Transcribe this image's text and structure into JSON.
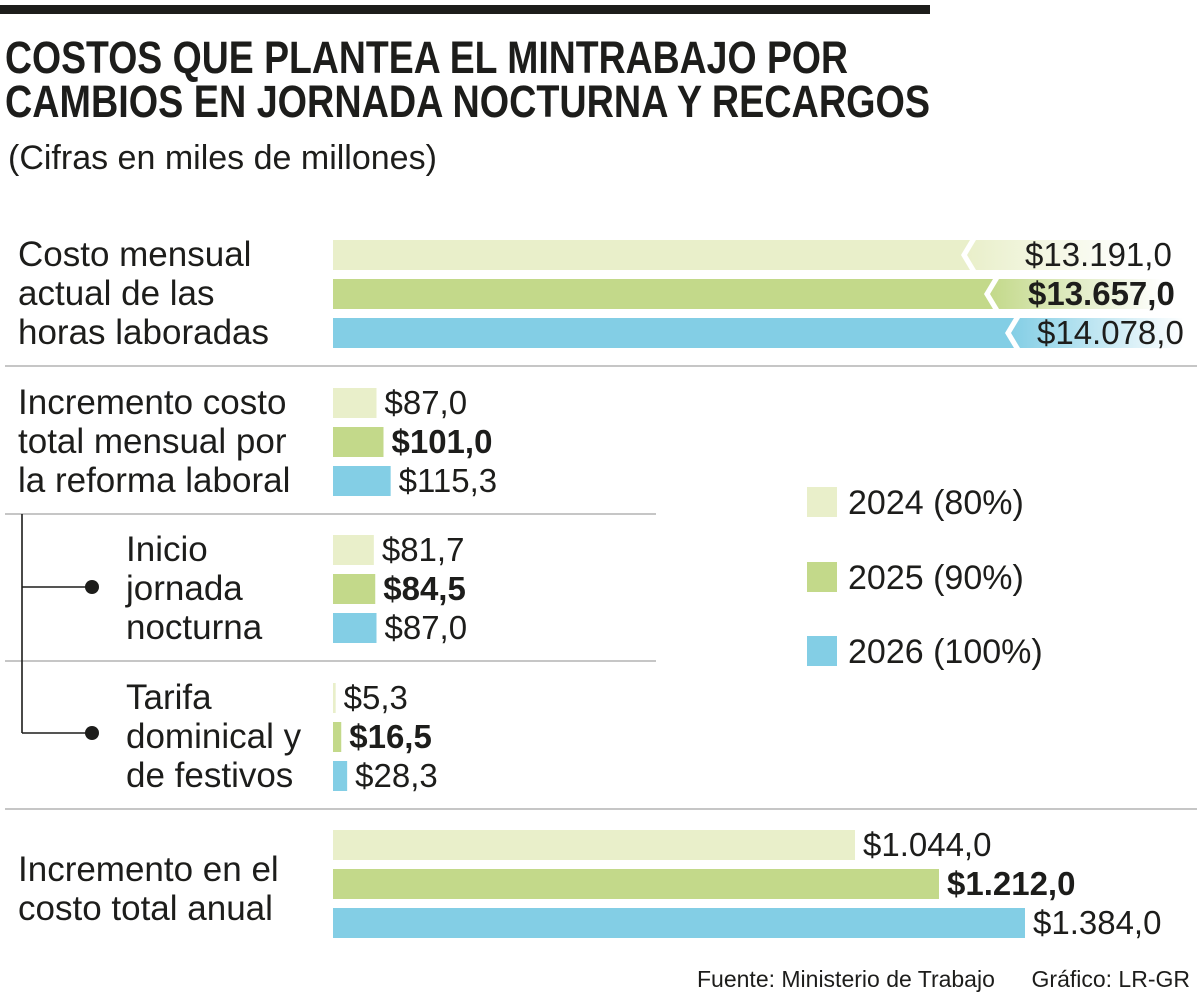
{
  "chart_data": {
    "type": "bar",
    "title_lines": [
      "COSTOS QUE PLANTEA EL MINTRABAJO POR",
      "CAMBIOS EN JORNADA NOCTURNA Y RECARGOS"
    ],
    "subtitle": "(Cifras en miles de millones)",
    "grid": false,
    "legend_position": "right",
    "series": [
      {
        "name": "2024 (80%)",
        "color": "#e9efca"
      },
      {
        "name": "2025 (90%)",
        "color": "#c3d98a"
      },
      {
        "name": "2026 (100%)",
        "color": "#83cee5"
      }
    ],
    "categories": [
      {
        "label_lines": [
          "Costo mensual",
          "actual de las",
          "horas laboradas"
        ],
        "level": 0,
        "broken_axis": true,
        "values": [
          13191.0,
          13657.0,
          14078.0
        ],
        "value_labels": [
          "$13.191,0",
          "$13.657,0",
          "$14.078,0"
        ]
      },
      {
        "label_lines": [
          "Incremento costo",
          "total mensual por",
          "la reforma laboral"
        ],
        "level": 0,
        "values": [
          87.0,
          101.0,
          115.3
        ],
        "value_labels": [
          "$87,0",
          "$101,0",
          "$115,3"
        ]
      },
      {
        "label_lines": [
          "Inicio",
          "jornada",
          "nocturna"
        ],
        "level": 1,
        "values": [
          81.7,
          84.5,
          87.0
        ],
        "value_labels": [
          "$81,7",
          "$84,5",
          "$87,0"
        ]
      },
      {
        "label_lines": [
          "Tarifa",
          "dominical y",
          "de festivos"
        ],
        "level": 1,
        "values": [
          5.3,
          16.5,
          28.3
        ],
        "value_labels": [
          "$5,3",
          "$16,5",
          "$28,3"
        ]
      },
      {
        "label_lines": [
          "Incremento en el",
          "costo total anual"
        ],
        "level": 0,
        "values": [
          1044.0,
          1212.0,
          1384.0
        ],
        "value_labels": [
          "$1.044,0",
          "$1.212,0",
          "$1.384,0"
        ]
      }
    ],
    "source": "Fuente: Ministerio de Trabajo",
    "credit": "Gráfico: LR-GR"
  }
}
